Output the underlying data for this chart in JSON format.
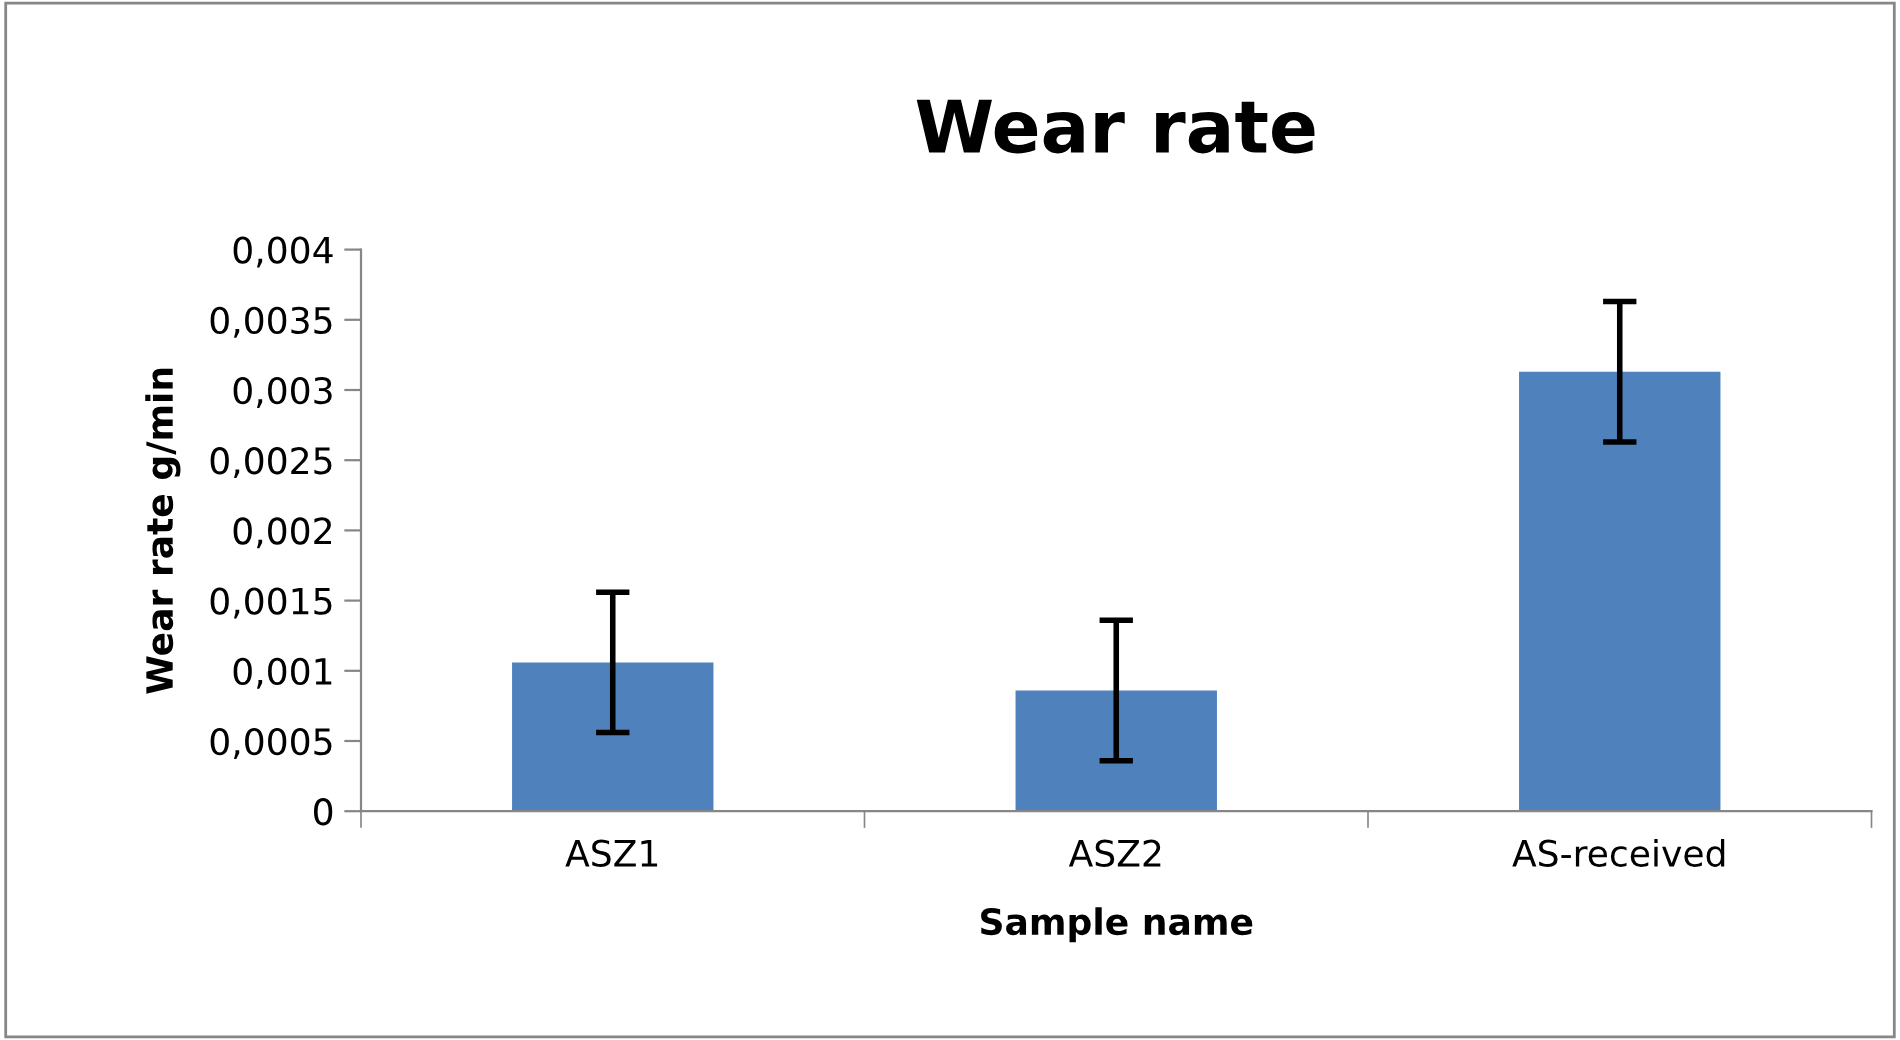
{
  "chart_data": {
    "type": "bar",
    "title": "Wear rate",
    "xlabel": "Sample name",
    "ylabel": "Wear rate g/min",
    "categories": [
      "ASZ1",
      "ASZ2",
      "AS-received"
    ],
    "values": [
      0.00106,
      0.00086,
      0.00313
    ],
    "errors": [
      0.0005,
      0.0005,
      0.0005
    ],
    "color": "#4f81bd",
    "ylim": [
      0,
      0.004
    ],
    "yticks": [
      0,
      {
        "value": 0.0005,
        "label": "0,0005"
      },
      {
        "value": 0.001,
        "label": "0,001"
      },
      {
        "value": 0.0015,
        "label": "0,0015"
      },
      {
        "value": 0.002,
        "label": "0,002"
      },
      {
        "value": 0.0025,
        "label": "0,0025"
      },
      {
        "value": 0.003,
        "label": "0,003"
      },
      {
        "value": 0.0035,
        "label": "0,0035"
      },
      {
        "value": 0.004,
        "label": "0,004"
      }
    ],
    "grid": false,
    "legend": false
  }
}
